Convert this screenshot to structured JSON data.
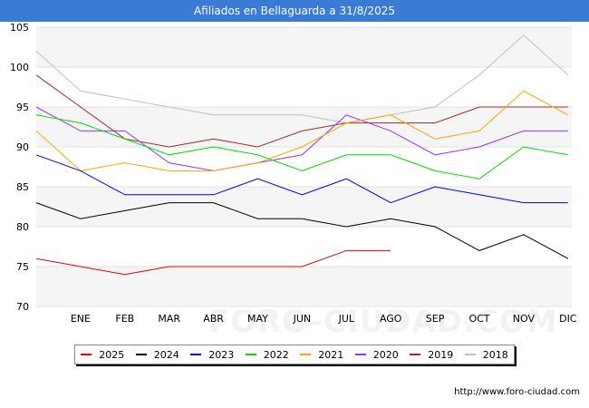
{
  "title": "Afiliados en Bellaguarda a 31/8/2025",
  "footer_url": "http://www.foro-ciudad.com",
  "watermark": "FORO-CIUDAD.COM",
  "chart_data": {
    "type": "line",
    "title": "Afiliados en Bellaguarda a 31/8/2025",
    "categories": [
      "",
      "ENE",
      "FEB",
      "MAR",
      "ABR",
      "MAY",
      "JUN",
      "JUL",
      "AGO",
      "SEP",
      "OCT",
      "NOV",
      "DIC"
    ],
    "yticks": [
      70,
      75,
      80,
      85,
      90,
      95,
      100,
      105
    ],
    "ylim": [
      70,
      105
    ],
    "grid": true,
    "legend_position": "bottom",
    "series": [
      {
        "name": "2025",
        "color": "#ee0000",
        "values": [
          76,
          75,
          74,
          75,
          75,
          75,
          75,
          77,
          77,
          null,
          null,
          null,
          null
        ]
      },
      {
        "name": "2024",
        "color": "#000000",
        "values": [
          83,
          81,
          82,
          83,
          83,
          81,
          81,
          80,
          81,
          80,
          77,
          79,
          76
        ]
      },
      {
        "name": "2023",
        "color": "#0000ee",
        "values": [
          89,
          87,
          84,
          84,
          84,
          86,
          84,
          86,
          83,
          85,
          84,
          83,
          83
        ]
      },
      {
        "name": "2022",
        "color": "#00dd00",
        "values": [
          94,
          93,
          91,
          89,
          90,
          89,
          87,
          89,
          89,
          87,
          86,
          90,
          89
        ]
      },
      {
        "name": "2021",
        "color": "#ffa500",
        "values": [
          92,
          87,
          88,
          87,
          87,
          88,
          90,
          93,
          94,
          91,
          92,
          97,
          94
        ]
      },
      {
        "name": "2020",
        "color": "#9b30ff",
        "values": [
          95,
          92,
          92,
          88,
          87,
          88,
          89,
          94,
          92,
          89,
          90,
          92,
          92
        ]
      },
      {
        "name": "2019",
        "color": "#a52a2a",
        "values": [
          99,
          95,
          91,
          90,
          91,
          90,
          92,
          93,
          93,
          93,
          95,
          95,
          95
        ]
      },
      {
        "name": "2018",
        "color": "#c0c0c0",
        "values": [
          102,
          97,
          96,
          95,
          94,
          94,
          94,
          93,
          94,
          95,
          99,
          104,
          99
        ]
      }
    ]
  }
}
